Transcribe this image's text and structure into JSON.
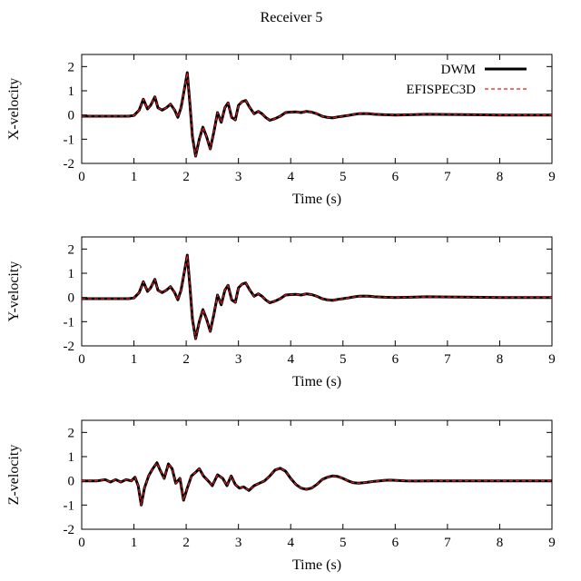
{
  "figure": {
    "title": "Receiver 5"
  },
  "chart_data": [
    {
      "type": "line",
      "ylabel": "X-velocity",
      "xlabel": "Time (s)",
      "xlim": [
        0,
        9
      ],
      "ylim": [
        -2,
        2.5
      ],
      "xticks": [
        "0",
        "1",
        "2",
        "3",
        "4",
        "5",
        "6",
        "7",
        "8",
        "9"
      ],
      "yticks": [
        "-2",
        "-1",
        "0",
        "1",
        "2"
      ],
      "grid": false,
      "legend_position": "top-right",
      "series": [
        {
          "name": "DWM",
          "color": "#000000",
          "style": "solid",
          "x": [
            0,
            0.5,
            0.9,
            1.0,
            1.1,
            1.18,
            1.26,
            1.32,
            1.4,
            1.46,
            1.54,
            1.62,
            1.7,
            1.78,
            1.84,
            1.9,
            1.96,
            2.02,
            2.07,
            2.12,
            2.18,
            2.25,
            2.32,
            2.39,
            2.46,
            2.53,
            2.6,
            2.67,
            2.74,
            2.8,
            2.87,
            2.94,
            3.0,
            3.07,
            3.14,
            3.22,
            3.3,
            3.38,
            3.45,
            3.52,
            3.6,
            3.7,
            3.8,
            3.9,
            4.0,
            4.1,
            4.2,
            4.3,
            4.4,
            4.5,
            4.6,
            4.7,
            4.8,
            4.9,
            5.0,
            5.1,
            5.2,
            5.3,
            5.4,
            5.5,
            5.6,
            5.7,
            5.8,
            6.0,
            6.3,
            6.6,
            7.0,
            7.5,
            8.0,
            8.5,
            9.0
          ],
          "y": [
            -0.05,
            -0.05,
            -0.05,
            -0.02,
            0.2,
            0.65,
            0.25,
            0.4,
            0.75,
            0.3,
            0.2,
            0.3,
            0.45,
            0.2,
            -0.1,
            0.3,
            1.0,
            1.75,
            0.5,
            -0.9,
            -1.7,
            -1.0,
            -0.5,
            -0.9,
            -1.4,
            -0.7,
            0.1,
            -0.3,
            0.3,
            0.5,
            -0.1,
            -0.2,
            0.4,
            0.55,
            0.6,
            0.3,
            0.05,
            0.15,
            0.05,
            -0.1,
            -0.22,
            -0.15,
            -0.05,
            0.1,
            0.12,
            0.13,
            0.1,
            0.15,
            0.12,
            0.05,
            -0.05,
            -0.1,
            -0.12,
            -0.08,
            -0.05,
            -0.02,
            0.02,
            0.05,
            0.06,
            0.05,
            0.03,
            0.02,
            0.01,
            0.0,
            0.01,
            0.03,
            0.02,
            0.01,
            0.0,
            0.0,
            0.0
          ]
        },
        {
          "name": "EFISPEC3D",
          "color": "#e31a1c",
          "style": "dashed",
          "x": [
            0,
            0.5,
            0.9,
            1.0,
            1.1,
            1.18,
            1.26,
            1.32,
            1.4,
            1.46,
            1.54,
            1.62,
            1.7,
            1.78,
            1.84,
            1.9,
            1.96,
            2.02,
            2.07,
            2.12,
            2.18,
            2.25,
            2.32,
            2.39,
            2.46,
            2.53,
            2.6,
            2.67,
            2.74,
            2.8,
            2.87,
            2.94,
            3.0,
            3.07,
            3.14,
            3.22,
            3.3,
            3.38,
            3.45,
            3.52,
            3.6,
            3.7,
            3.8,
            3.9,
            4.0,
            4.1,
            4.2,
            4.3,
            4.4,
            4.5,
            4.6,
            4.7,
            4.8,
            4.9,
            5.0,
            5.1,
            5.2,
            5.3,
            5.4,
            5.5,
            5.6,
            5.7,
            5.8,
            6.0,
            6.3,
            6.6,
            7.0,
            7.5,
            8.0,
            8.5,
            9.0
          ],
          "y": [
            -0.05,
            -0.05,
            -0.05,
            -0.02,
            0.2,
            0.65,
            0.25,
            0.4,
            0.75,
            0.3,
            0.2,
            0.3,
            0.45,
            0.2,
            -0.1,
            0.3,
            1.0,
            1.75,
            0.5,
            -0.9,
            -1.7,
            -1.0,
            -0.5,
            -0.9,
            -1.4,
            -0.7,
            0.1,
            -0.3,
            0.3,
            0.5,
            -0.1,
            -0.2,
            0.4,
            0.55,
            0.6,
            0.3,
            0.05,
            0.15,
            0.05,
            -0.1,
            -0.22,
            -0.15,
            -0.05,
            0.1,
            0.12,
            0.13,
            0.1,
            0.15,
            0.12,
            0.05,
            -0.05,
            -0.1,
            -0.12,
            -0.08,
            -0.05,
            -0.02,
            0.02,
            0.05,
            0.06,
            0.05,
            0.03,
            0.02,
            0.01,
            0.0,
            0.01,
            0.03,
            0.02,
            0.01,
            0.0,
            0.0,
            0.0
          ]
        }
      ]
    },
    {
      "type": "line",
      "ylabel": "Y-velocity",
      "xlabel": "Time (s)",
      "xlim": [
        0,
        9
      ],
      "ylim": [
        -2,
        2.5
      ],
      "xticks": [
        "0",
        "1",
        "2",
        "3",
        "4",
        "5",
        "6",
        "7",
        "8",
        "9"
      ],
      "yticks": [
        "-2",
        "-1",
        "0",
        "1",
        "2"
      ],
      "grid": false,
      "series": [
        {
          "name": "DWM",
          "color": "#000000",
          "style": "solid",
          "x": [
            0,
            0.5,
            0.9,
            1.0,
            1.1,
            1.18,
            1.26,
            1.32,
            1.4,
            1.46,
            1.54,
            1.62,
            1.7,
            1.78,
            1.84,
            1.9,
            1.96,
            2.02,
            2.07,
            2.12,
            2.18,
            2.25,
            2.32,
            2.39,
            2.46,
            2.53,
            2.6,
            2.67,
            2.74,
            2.8,
            2.87,
            2.94,
            3.0,
            3.07,
            3.14,
            3.22,
            3.3,
            3.38,
            3.45,
            3.52,
            3.6,
            3.7,
            3.8,
            3.9,
            4.0,
            4.1,
            4.2,
            4.3,
            4.4,
            4.5,
            4.6,
            4.7,
            4.8,
            4.9,
            5.0,
            5.1,
            5.2,
            5.3,
            5.4,
            5.5,
            5.6,
            5.7,
            5.8,
            6.0,
            6.3,
            6.6,
            7.0,
            7.5,
            8.0,
            8.5,
            9.0
          ],
          "y": [
            -0.05,
            -0.05,
            -0.05,
            -0.02,
            0.2,
            0.65,
            0.25,
            0.4,
            0.75,
            0.3,
            0.2,
            0.3,
            0.45,
            0.2,
            -0.1,
            0.3,
            1.0,
            1.75,
            0.5,
            -0.9,
            -1.7,
            -1.0,
            -0.5,
            -0.9,
            -1.4,
            -0.7,
            0.1,
            -0.3,
            0.3,
            0.5,
            -0.1,
            -0.2,
            0.4,
            0.55,
            0.6,
            0.3,
            0.05,
            0.15,
            0.05,
            -0.1,
            -0.22,
            -0.15,
            -0.05,
            0.1,
            0.12,
            0.13,
            0.1,
            0.15,
            0.12,
            0.05,
            -0.05,
            -0.1,
            -0.12,
            -0.08,
            -0.05,
            -0.02,
            0.02,
            0.05,
            0.06,
            0.05,
            0.03,
            0.02,
            0.01,
            0.0,
            0.01,
            0.03,
            0.02,
            0.01,
            0.0,
            0.0,
            0.0
          ]
        },
        {
          "name": "EFISPEC3D",
          "color": "#e31a1c",
          "style": "dashed",
          "x": [
            0,
            0.5,
            0.9,
            1.0,
            1.1,
            1.18,
            1.26,
            1.32,
            1.4,
            1.46,
            1.54,
            1.62,
            1.7,
            1.78,
            1.84,
            1.9,
            1.96,
            2.02,
            2.07,
            2.12,
            2.18,
            2.25,
            2.32,
            2.39,
            2.46,
            2.53,
            2.6,
            2.67,
            2.74,
            2.8,
            2.87,
            2.94,
            3.0,
            3.07,
            3.14,
            3.22,
            3.3,
            3.38,
            3.45,
            3.52,
            3.6,
            3.7,
            3.8,
            3.9,
            4.0,
            4.1,
            4.2,
            4.3,
            4.4,
            4.5,
            4.6,
            4.7,
            4.8,
            4.9,
            5.0,
            5.1,
            5.2,
            5.3,
            5.4,
            5.5,
            5.6,
            5.7,
            5.8,
            6.0,
            6.3,
            6.6,
            7.0,
            7.5,
            8.0,
            8.5,
            9.0
          ],
          "y": [
            -0.05,
            -0.05,
            -0.05,
            -0.02,
            0.2,
            0.65,
            0.25,
            0.4,
            0.75,
            0.3,
            0.2,
            0.3,
            0.45,
            0.2,
            -0.1,
            0.3,
            1.0,
            1.75,
            0.5,
            -0.9,
            -1.7,
            -1.0,
            -0.5,
            -0.9,
            -1.4,
            -0.7,
            0.1,
            -0.3,
            0.3,
            0.5,
            -0.1,
            -0.2,
            0.4,
            0.55,
            0.6,
            0.3,
            0.05,
            0.15,
            0.05,
            -0.1,
            -0.22,
            -0.15,
            -0.05,
            0.1,
            0.12,
            0.13,
            0.1,
            0.15,
            0.12,
            0.05,
            -0.05,
            -0.1,
            -0.12,
            -0.08,
            -0.05,
            -0.02,
            0.02,
            0.05,
            0.06,
            0.05,
            0.03,
            0.02,
            0.01,
            0.0,
            0.01,
            0.03,
            0.02,
            0.01,
            0.0,
            0.0,
            0.0
          ]
        }
      ]
    },
    {
      "type": "line",
      "ylabel": "Z-velocity",
      "xlabel": "Time (s)",
      "xlim": [
        0,
        9
      ],
      "ylim": [
        -2,
        2.5
      ],
      "xticks": [
        "0",
        "1",
        "2",
        "3",
        "4",
        "5",
        "6",
        "7",
        "8",
        "9"
      ],
      "yticks": [
        "-2",
        "-1",
        "0",
        "1",
        "2"
      ],
      "grid": false,
      "series": [
        {
          "name": "DWM",
          "color": "#000000",
          "style": "solid",
          "x": [
            0,
            0.3,
            0.45,
            0.55,
            0.65,
            0.75,
            0.85,
            0.95,
            1.02,
            1.08,
            1.14,
            1.2,
            1.28,
            1.36,
            1.44,
            1.5,
            1.58,
            1.66,
            1.73,
            1.8,
            1.88,
            1.95,
            2.02,
            2.1,
            2.18,
            2.25,
            2.33,
            2.42,
            2.5,
            2.6,
            2.7,
            2.78,
            2.86,
            2.94,
            3.02,
            3.1,
            3.2,
            3.3,
            3.4,
            3.5,
            3.6,
            3.7,
            3.8,
            3.9,
            4.0,
            4.1,
            4.2,
            4.3,
            4.4,
            4.5,
            4.6,
            4.7,
            4.8,
            4.9,
            5.0,
            5.1,
            5.2,
            5.3,
            5.4,
            5.5,
            5.6,
            5.7,
            5.8,
            5.9,
            6.0,
            6.2,
            6.4,
            6.7,
            7.0,
            7.5,
            8.0,
            8.5,
            9.0
          ],
          "y": [
            0.0,
            0.0,
            0.05,
            -0.05,
            0.05,
            -0.05,
            0.05,
            0.0,
            0.15,
            -0.2,
            -1.0,
            -0.3,
            0.2,
            0.5,
            0.75,
            0.45,
            0.1,
            0.7,
            0.5,
            -0.1,
            0.1,
            -0.8,
            -0.3,
            0.2,
            0.35,
            0.5,
            0.2,
            0.0,
            -0.2,
            0.25,
            0.1,
            -0.2,
            0.2,
            -0.15,
            -0.3,
            -0.25,
            -0.4,
            -0.2,
            -0.1,
            0.0,
            0.2,
            0.45,
            0.52,
            0.4,
            0.1,
            -0.15,
            -0.3,
            -0.35,
            -0.3,
            -0.15,
            0.05,
            0.15,
            0.2,
            0.18,
            0.1,
            0.0,
            -0.08,
            -0.1,
            -0.08,
            -0.05,
            -0.02,
            0.0,
            0.02,
            0.03,
            0.02,
            0.0,
            -0.01,
            0.0,
            0.0,
            0.0,
            0.0,
            0.0,
            0.0
          ]
        },
        {
          "name": "EFISPEC3D",
          "color": "#e31a1c",
          "style": "dashed",
          "x": [
            0,
            0.3,
            0.45,
            0.55,
            0.65,
            0.75,
            0.85,
            0.95,
            1.02,
            1.08,
            1.14,
            1.2,
            1.28,
            1.36,
            1.44,
            1.5,
            1.58,
            1.66,
            1.73,
            1.8,
            1.88,
            1.95,
            2.02,
            2.1,
            2.18,
            2.25,
            2.33,
            2.42,
            2.5,
            2.6,
            2.7,
            2.78,
            2.86,
            2.94,
            3.02,
            3.1,
            3.2,
            3.3,
            3.4,
            3.5,
            3.6,
            3.7,
            3.8,
            3.9,
            4.0,
            4.1,
            4.2,
            4.3,
            4.4,
            4.5,
            4.6,
            4.7,
            4.8,
            4.9,
            5.0,
            5.1,
            5.2,
            5.3,
            5.4,
            5.5,
            5.6,
            5.7,
            5.8,
            5.9,
            6.0,
            6.2,
            6.4,
            6.7,
            7.0,
            7.5,
            8.0,
            8.5,
            9.0
          ],
          "y": [
            0.0,
            0.0,
            0.05,
            -0.05,
            0.05,
            -0.05,
            0.05,
            0.0,
            0.15,
            -0.2,
            -1.0,
            -0.3,
            0.2,
            0.5,
            0.75,
            0.45,
            0.1,
            0.7,
            0.5,
            -0.1,
            0.1,
            -0.8,
            -0.3,
            0.2,
            0.35,
            0.5,
            0.2,
            0.0,
            -0.2,
            0.25,
            0.1,
            -0.2,
            0.2,
            -0.15,
            -0.3,
            -0.25,
            -0.4,
            -0.2,
            -0.1,
            0.0,
            0.2,
            0.45,
            0.52,
            0.4,
            0.1,
            -0.15,
            -0.3,
            -0.35,
            -0.3,
            -0.15,
            0.05,
            0.15,
            0.2,
            0.18,
            0.1,
            0.0,
            -0.08,
            -0.1,
            -0.08,
            -0.05,
            -0.02,
            0.0,
            0.02,
            0.03,
            0.02,
            0.0,
            -0.01,
            0.0,
            0.0,
            0.0,
            0.0,
            0.0,
            0.0
          ]
        }
      ]
    }
  ]
}
